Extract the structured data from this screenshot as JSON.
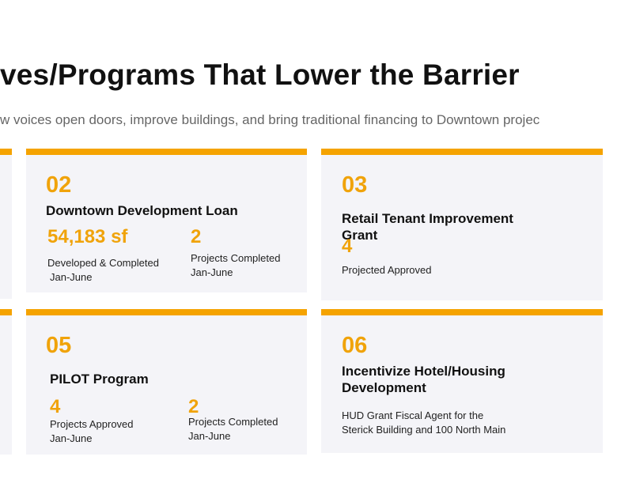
{
  "header": {
    "title": "ves/Programs That Lower the Barrier",
    "subtitle": "w voices open doors, improve buildings, and bring traditional financing to Downtown projec"
  },
  "cards": [
    {
      "number": "02",
      "title": "Downtown Development Loan",
      "stats": [
        {
          "value": "54,183 sf",
          "label_lines": [
            "Developed & Completed",
            "Jan-June"
          ]
        },
        {
          "value": "2",
          "label_lines": [
            "Projects Completed",
            "Jan-June"
          ]
        }
      ]
    },
    {
      "number": "03",
      "title": "Retail Tenant Improvement Grant",
      "stats": [
        {
          "value": "4",
          "label_lines": [
            "Projected Approved"
          ]
        }
      ]
    },
    {
      "number": "05",
      "title": "PILOT Program",
      "stats": [
        {
          "value": "4",
          "label_lines": [
            "Projects Approved",
            "Jan-June"
          ]
        },
        {
          "value": "2",
          "label_lines": [
            "Projects Completed",
            "Jan-June"
          ]
        }
      ]
    },
    {
      "number": "06",
      "title": "Incentivize Hotel/Housing Development",
      "description_lines": [
        "HUD Grant Fiscal Agent for the",
        "Sterick Building and 100 North Main"
      ]
    }
  ]
}
